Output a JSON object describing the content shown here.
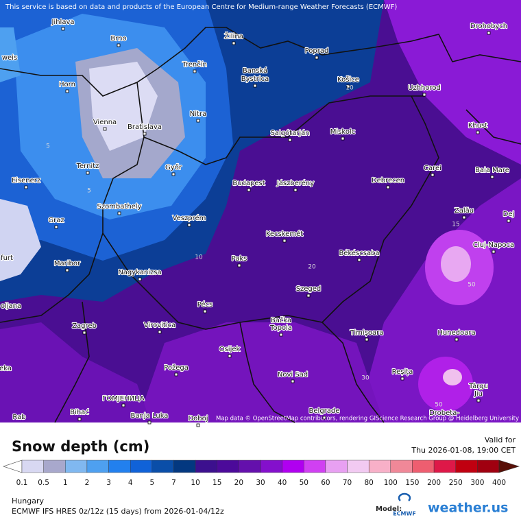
{
  "map": {
    "attribution_top": "This service is based on data and products of the European Centre for Medium-range Weather Forecasts (ECMWF)",
    "attribution_bottom": "Map data © OpenStreetMap contributors, rendering GIScience Research Group @ Heidelberg University",
    "cities": [
      "Jihlava",
      "Brno",
      "Žilina",
      "Poprad",
      "Drohobych",
      "Trenčín",
      "Banská",
      "Bystrica",
      "Košice",
      "Uzhhorod",
      "Horn",
      "Nitra",
      "Vienna",
      "Bratislava",
      "Salgótarján",
      "Miskolc",
      "Khust",
      "Ternitz",
      "Győr",
      "Carei",
      "Baia Mare",
      "Eisenerz",
      "Budapest",
      "Jászberény",
      "Debrecen",
      "Szombathely",
      "Zalău",
      "Graz",
      "Veszprém",
      "Dej",
      "Kecskemét",
      "Cluj-Napoca",
      "Maribor",
      "Paks",
      "Békéscsaba",
      "Nagykanizsa",
      "Szeged",
      "Pécs",
      "Zagreb",
      "Virovitica",
      "Bačka",
      "Topola",
      "Timișoara",
      "Hunedoara",
      "Osijek",
      "Požega",
      "Reșița",
      "Novi Sad",
      "Târgu",
      "Jiu",
      "ГОМЈЕНИЦА",
      "Belgrade",
      "Bihać",
      "Banja Luka",
      "Doboj",
      "Drobeta-",
      "weis",
      "furt",
      "oljana",
      "eka",
      "Rab"
    ],
    "contour_labels": [
      "10",
      "10",
      "5",
      "15",
      "20",
      "50",
      "50",
      "30",
      "5"
    ]
  },
  "legend": {
    "title": "Snow depth (cm)",
    "labels": [
      "0.1",
      "0.5",
      "1",
      "2",
      "3",
      "4",
      "5",
      "7",
      "10",
      "15",
      "20",
      "30",
      "40",
      "50",
      "60",
      "70",
      "80",
      "100",
      "150",
      "200",
      "250",
      "300",
      "400"
    ],
    "colors": [
      "#ffffff",
      "#d8d8f2",
      "#a8a8cc",
      "#80b8f0",
      "#4ea0f0",
      "#2280ee",
      "#1062d8",
      "#0a4ea8",
      "#033880",
      "#3c108e",
      "#4c0a9a",
      "#6410ac",
      "#8410cc",
      "#b000f0",
      "#d040f2",
      "#e8a0f2",
      "#f2caf2",
      "#f8b0c8",
      "#f08898",
      "#ee5e70",
      "#de1848",
      "#c00010",
      "#a00010",
      "#581008"
    ]
  },
  "footer": {
    "valid_label": "Valid for",
    "valid_time": "Thu 2026-01-08, 19:00 CET",
    "region": "Hungary",
    "model_run": "ECMWF IFS HRES 0z/12z (15 days) from 2026-01-04/12z",
    "model_label": "Model:",
    "ecmwf_logo": "ECMWF",
    "site_logo": "weather.us"
  }
}
